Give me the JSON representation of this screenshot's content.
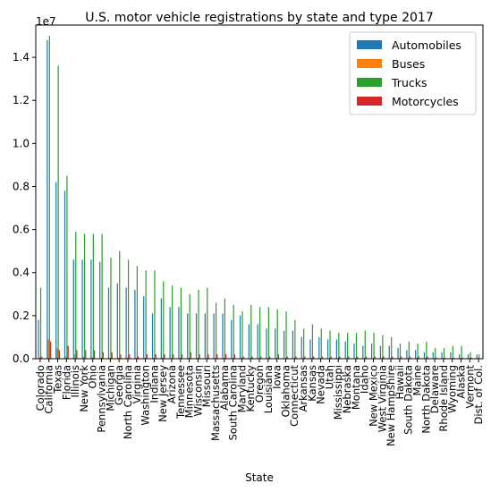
{
  "chart_data": {
    "type": "bar",
    "title": "U.S. motor vehicle registrations by state and type 2017",
    "xlabel": "State",
    "ylabel": "",
    "y_scale_label": "1e7",
    "ylim": [
      0,
      1.55
    ],
    "yticks": [
      0.0,
      0.2,
      0.4,
      0.6,
      0.8,
      1.0,
      1.2,
      1.4
    ],
    "ytick_labels": [
      "0.0",
      "0.2",
      "0.4",
      "0.6",
      "0.8",
      "1.0",
      "1.2",
      "1.4"
    ],
    "grid": false,
    "legend_position": "top-right",
    "categories": [
      "Colorado",
      "California",
      "Texas",
      "Florida",
      "Illinois",
      "New York",
      "Ohio",
      "Pennsylvania",
      "Michigan",
      "Georgia",
      "North Carolina",
      "Virginia",
      "Washington",
      "Indiana",
      "New Jersey",
      "Arizona",
      "Tennessee",
      "Minnesota",
      "Wisconsin",
      "Missouri",
      "Massachusetts",
      "Alabama",
      "South Carolina",
      "Maryland",
      "Kentucky",
      "Oregon",
      "Louisiana",
      "Iowa",
      "Oklahoma",
      "Connecticut",
      "Arkansas",
      "Kansas",
      "Nevada",
      "Utah",
      "Mississippi",
      "Nebraska",
      "Montana",
      "Idaho",
      "New Mexico",
      "West Virginia",
      "New Hampshire",
      "Hawaii",
      "South Dakota",
      "Maine",
      "North Dakota",
      "Delaware",
      "Rhode Island",
      "Wyoming",
      "Alaska",
      "Vermont",
      "Dist. of Col."
    ],
    "series": [
      {
        "name": "Automobiles",
        "color": "#1f77b4",
        "values": [
          0.18,
          1.48,
          0.82,
          0.78,
          0.46,
          0.46,
          0.46,
          0.45,
          0.33,
          0.35,
          0.33,
          0.32,
          0.29,
          0.21,
          0.28,
          0.24,
          0.24,
          0.21,
          0.21,
          0.21,
          0.21,
          0.21,
          0.18,
          0.2,
          0.16,
          0.16,
          0.14,
          0.14,
          0.13,
          0.13,
          0.1,
          0.09,
          0.1,
          0.09,
          0.09,
          0.08,
          0.07,
          0.06,
          0.07,
          0.06,
          0.06,
          0.05,
          0.04,
          0.04,
          0.03,
          0.03,
          0.03,
          0.03,
          0.02,
          0.02,
          0.02
        ]
      },
      {
        "name": "Buses",
        "color": "#ff7f0e",
        "values": [
          0.005,
          0.09,
          0.05,
          0.01,
          0.02,
          0.01,
          0.006,
          0.005,
          0.004,
          0.005,
          0.006,
          0.004,
          0.003,
          0.004,
          0.004,
          0.002,
          0.003,
          0.004,
          0.003,
          0.003,
          0.003,
          0.003,
          0.003,
          0.003,
          0.002,
          0.002,
          0.002,
          0.002,
          0.002,
          0.002,
          0.001,
          0.001,
          0.001,
          0.001,
          0.001,
          0.001,
          0.001,
          0.001,
          0.001,
          0.001,
          0.001,
          0.001,
          0.001,
          0.001,
          0.001,
          0.001,
          0.001,
          0.001,
          0.001,
          0.001,
          0.001
        ]
      },
      {
        "name": "Trucks",
        "color": "#2ca02c",
        "values": [
          0.33,
          1.5,
          1.36,
          0.85,
          0.59,
          0.58,
          0.58,
          0.58,
          0.47,
          0.5,
          0.46,
          0.43,
          0.41,
          0.41,
          0.36,
          0.34,
          0.33,
          0.3,
          0.32,
          0.33,
          0.26,
          0.28,
          0.25,
          0.22,
          0.25,
          0.24,
          0.24,
          0.23,
          0.22,
          0.18,
          0.14,
          0.16,
          0.14,
          0.13,
          0.12,
          0.12,
          0.12,
          0.13,
          0.12,
          0.11,
          0.1,
          0.07,
          0.08,
          0.07,
          0.08,
          0.05,
          0.05,
          0.06,
          0.06,
          0.03,
          0.02
        ]
      },
      {
        "name": "Motorcycles",
        "color": "#d62728",
        "values": [
          0.01,
          0.08,
          0.04,
          0.06,
          0.04,
          0.04,
          0.04,
          0.03,
          0.03,
          0.02,
          0.02,
          0.01,
          0.02,
          0.02,
          0.02,
          0.02,
          0.02,
          0.03,
          0.02,
          0.02,
          0.02,
          0.02,
          0.02,
          0.01,
          0.01,
          0.01,
          0.01,
          0.02,
          0.01,
          0.01,
          0.01,
          0.01,
          0.01,
          0.01,
          0.01,
          0.01,
          0.01,
          0.01,
          0.01,
          0.01,
          0.01,
          0.01,
          0.01,
          0.01,
          0.01,
          0.005,
          0.005,
          0.005,
          0.005,
          0.005,
          0.002
        ]
      }
    ]
  }
}
